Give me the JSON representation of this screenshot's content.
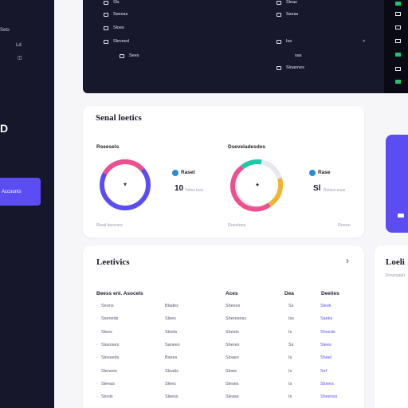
{
  "sidebar": {
    "items": [
      "Sets",
      "Ld",
      "Accounts"
    ],
    "active_label": "Accounts"
  },
  "top_panel": {
    "col1": [
      "Sls",
      "Sseeas",
      "Sloes",
      "Sleveed",
      "Sees"
    ],
    "col2": [
      "Sleas",
      "Sseas",
      "Ise",
      "sas",
      "Sloannes"
    ],
    "side_btn": ">"
  },
  "analytics": {
    "title": "Senal loetics",
    "left": {
      "label": "Rseesels",
      "foot": "Rwal leesnes",
      "stat_label": "Raset",
      "stat_value": "10",
      "stat_sub": "Tolies loes"
    },
    "right": {
      "label": "Dseveladesdes",
      "foot": "Rosslees",
      "stat_label": "Rase",
      "stat_value": "Sl",
      "stat_sub": "Rolses esas",
      "foot_right": "Rosee"
    },
    "colors": {
      "left_pink": "#ee4f8f",
      "left_purple": "#5b4df2",
      "right_teal": "#21c7a8",
      "right_yellow": "#f2b533",
      "right_pink": "#ee4f8f",
      "right_grey": "#e7e7ee"
    }
  },
  "activity": {
    "title": "Leetivics",
    "chevron": "›",
    "headers": [
      "Beess enl. Asocels",
      "Aces",
      "Dea",
      "Deelies"
    ],
    "rows": [
      [
        "Seons",
        "Blades",
        "Sheess",
        "Ss",
        "Sleek"
      ],
      [
        "Sseneds",
        "Slees",
        "Sheresess",
        "Iss",
        "Saeks"
      ],
      [
        "Slees",
        "Sloets",
        "Sheels",
        "Is",
        "Sheeds"
      ],
      [
        "Slasoses",
        "Sanees",
        "Sheres",
        "Ss",
        "Slees"
      ],
      [
        "Slosseds",
        "Bsees",
        "Sloaes",
        "Is",
        "Sheel"
      ],
      [
        "Slenees",
        "Sloads",
        "Sloee",
        "Is",
        "Sef"
      ],
      [
        "Sleeas",
        "Slees",
        "Sleses",
        "Is",
        "Sloees"
      ],
      [
        "Slosls",
        "Sleess",
        "Slease",
        "Is",
        "Sheenss"
      ]
    ]
  },
  "right_card": {
    "title": "Loeli",
    "sub": "Rovssaler"
  }
}
